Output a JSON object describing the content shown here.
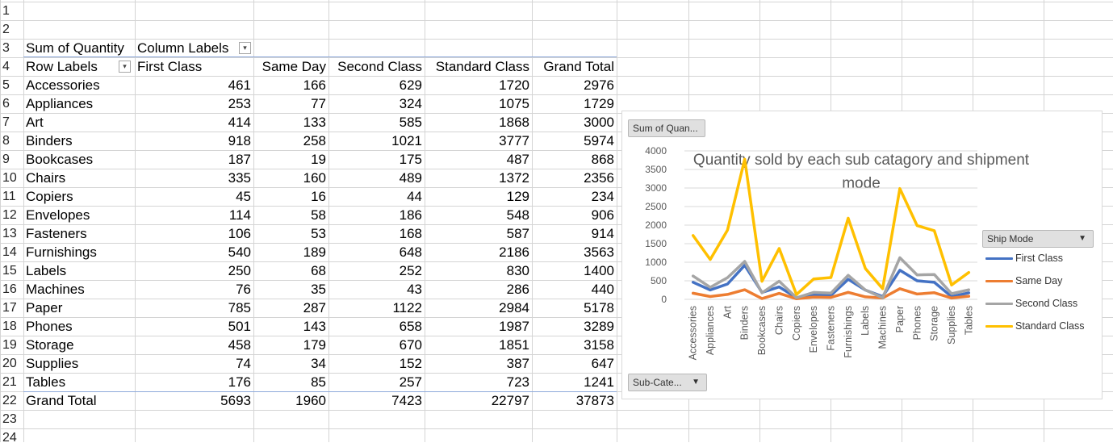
{
  "row_numbers": [
    "1",
    "2",
    "3",
    "4",
    "5",
    "6",
    "7",
    "8",
    "9",
    "10",
    "11",
    "12",
    "13",
    "14",
    "15",
    "16",
    "17",
    "18",
    "19",
    "20",
    "21",
    "22",
    "23",
    "24"
  ],
  "pivot": {
    "value_caption": "Sum of Quantity",
    "column_labels_caption": "Column Labels",
    "row_labels_caption": "Row Labels",
    "columns": [
      "First Class",
      "Same Day",
      "Second Class",
      "Standard Class",
      "Grand Total"
    ],
    "rows": [
      {
        "label": "Accessories",
        "values": [
          "461",
          "166",
          "629",
          "1720",
          "2976"
        ]
      },
      {
        "label": "Appliances",
        "values": [
          "253",
          "77",
          "324",
          "1075",
          "1729"
        ]
      },
      {
        "label": "Art",
        "values": [
          "414",
          "133",
          "585",
          "1868",
          "3000"
        ]
      },
      {
        "label": "Binders",
        "values": [
          "918",
          "258",
          "1021",
          "3777",
          "5974"
        ]
      },
      {
        "label": "Bookcases",
        "values": [
          "187",
          "19",
          "175",
          "487",
          "868"
        ]
      },
      {
        "label": "Chairs",
        "values": [
          "335",
          "160",
          "489",
          "1372",
          "2356"
        ]
      },
      {
        "label": "Copiers",
        "values": [
          "45",
          "16",
          "44",
          "129",
          "234"
        ]
      },
      {
        "label": "Envelopes",
        "values": [
          "114",
          "58",
          "186",
          "548",
          "906"
        ]
      },
      {
        "label": "Fasteners",
        "values": [
          "106",
          "53",
          "168",
          "587",
          "914"
        ]
      },
      {
        "label": "Furnishings",
        "values": [
          "540",
          "189",
          "648",
          "2186",
          "3563"
        ]
      },
      {
        "label": "Labels",
        "values": [
          "250",
          "68",
          "252",
          "830",
          "1400"
        ]
      },
      {
        "label": "Machines",
        "values": [
          "76",
          "35",
          "43",
          "286",
          "440"
        ]
      },
      {
        "label": "Paper",
        "values": [
          "785",
          "287",
          "1122",
          "2984",
          "5178"
        ]
      },
      {
        "label": "Phones",
        "values": [
          "501",
          "143",
          "658",
          "1987",
          "3289"
        ]
      },
      {
        "label": "Storage",
        "values": [
          "458",
          "179",
          "670",
          "1851",
          "3158"
        ]
      },
      {
        "label": "Supplies",
        "values": [
          "74",
          "34",
          "152",
          "387",
          "647"
        ]
      },
      {
        "label": "Tables",
        "values": [
          "176",
          "85",
          "257",
          "723",
          "1241"
        ]
      }
    ],
    "grand_total": {
      "label": "Grand Total",
      "values": [
        "5693",
        "1960",
        "7423",
        "22797",
        "37873"
      ]
    }
  },
  "chart": {
    "value_field_button": "Sum of Quan...",
    "axis_field_button": "Sub-Cate...",
    "legend_field_button": "Ship Mode",
    "title_line1": "Quantity sold by each sub catagory and shipment",
    "title_line2": "mode",
    "colors": {
      "First Class": "#4472c4",
      "Same Day": "#ed7d31",
      "Second Class": "#a5a5a5",
      "Standard Class": "#ffc000"
    }
  },
  "chart_data": {
    "type": "line",
    "title": "Quantity sold by each sub catagory and shipment mode",
    "xlabel": "",
    "ylabel": "",
    "ylim": [
      0,
      4000
    ],
    "yticks": [
      "0",
      "500",
      "1000",
      "1500",
      "2000",
      "2500",
      "3000",
      "3500",
      "4000"
    ],
    "categories": [
      "Accessories",
      "Appliances",
      "Art",
      "Binders",
      "Bookcases",
      "Chairs",
      "Copiers",
      "Envelopes",
      "Fasteners",
      "Furnishings",
      "Labels",
      "Machines",
      "Paper",
      "Phones",
      "Storage",
      "Supplies",
      "Tables"
    ],
    "series": [
      {
        "name": "First Class",
        "values": [
          461,
          253,
          414,
          918,
          187,
          335,
          45,
          114,
          106,
          540,
          250,
          76,
          785,
          501,
          458,
          74,
          176
        ]
      },
      {
        "name": "Same Day",
        "values": [
          166,
          77,
          133,
          258,
          19,
          160,
          16,
          58,
          53,
          189,
          68,
          35,
          287,
          143,
          179,
          34,
          85
        ]
      },
      {
        "name": "Second Class",
        "values": [
          629,
          324,
          585,
          1021,
          175,
          489,
          44,
          186,
          168,
          648,
          252,
          43,
          1122,
          658,
          670,
          152,
          257
        ]
      },
      {
        "name": "Standard Class",
        "values": [
          1720,
          1075,
          1868,
          3777,
          487,
          1372,
          129,
          548,
          587,
          2186,
          830,
          286,
          2984,
          1987,
          1851,
          387,
          723
        ]
      }
    ],
    "grid": true,
    "legend_position": "right"
  }
}
